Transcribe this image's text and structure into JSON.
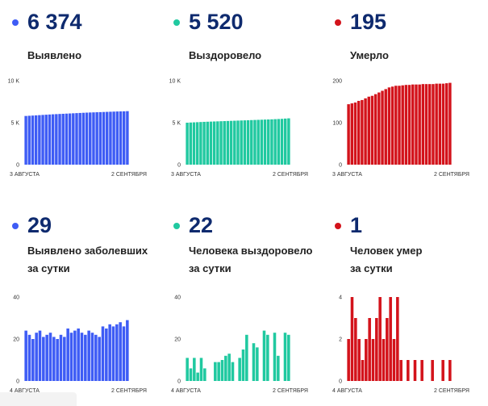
{
  "colors": {
    "blue": "#3e5cf5",
    "green": "#20c9a0",
    "red": "#d3131b"
  },
  "panels": [
    {
      "id": "p1",
      "color": "#3e5cf5",
      "big": "6 374",
      "label_lines": [
        "Выявлено"
      ]
    },
    {
      "id": "p2",
      "color": "#20c9a0",
      "big": "5 520",
      "label_lines": [
        "Выздоровело"
      ]
    },
    {
      "id": "p3",
      "color": "#d3131b",
      "big": "195",
      "label_lines": [
        "Умерло"
      ]
    },
    {
      "id": "p4",
      "color": "#3e5cf5",
      "big": "29",
      "label_lines": [
        "Выявлено заболевших",
        "за сутки"
      ]
    },
    {
      "id": "p5",
      "color": "#20c9a0",
      "big": "22",
      "label_lines": [
        "Человека выздоровело",
        "за сутки"
      ]
    },
    {
      "id": "p6",
      "color": "#d3131b",
      "big": "1",
      "label_lines": [
        "Человек умер",
        "за сутки"
      ]
    }
  ],
  "chart_data": [
    {
      "type": "bar",
      "color": "#3e5cf5",
      "ylim": [
        0,
        10000
      ],
      "yticks": [
        0,
        5000,
        10000
      ],
      "ytick_labels": [
        "0",
        "5 K",
        "10 K"
      ],
      "x_start_label": "3 АВГУСТА",
      "x_end_label": "2 СЕНТЯБРЯ",
      "values": [
        5800,
        5825,
        5850,
        5875,
        5900,
        5925,
        5950,
        5975,
        6000,
        6020,
        6040,
        6060,
        6080,
        6100,
        6120,
        6140,
        6160,
        6180,
        6200,
        6215,
        6230,
        6245,
        6260,
        6275,
        6290,
        6305,
        6320,
        6335,
        6345,
        6355,
        6374
      ]
    },
    {
      "type": "bar",
      "color": "#20c9a0",
      "ylim": [
        0,
        10000
      ],
      "yticks": [
        0,
        5000,
        10000
      ],
      "ytick_labels": [
        "0",
        "5 K",
        "10 K"
      ],
      "x_start_label": "3 АВГУСТА",
      "x_end_label": "2 СЕНТЯБРЯ",
      "values": [
        5000,
        5020,
        5040,
        5060,
        5080,
        5100,
        5115,
        5130,
        5145,
        5160,
        5175,
        5190,
        5205,
        5220,
        5235,
        5250,
        5265,
        5280,
        5295,
        5310,
        5325,
        5340,
        5355,
        5370,
        5385,
        5400,
        5420,
        5440,
        5460,
        5490,
        5520
      ]
    },
    {
      "type": "bar",
      "color": "#d3131b",
      "ylim": [
        0,
        200
      ],
      "yticks": [
        0,
        100,
        200
      ],
      "ytick_labels": [
        "0",
        "100",
        "200"
      ],
      "x_start_label": "3 АВГУСТА",
      "x_end_label": "2 СЕНТЯБРЯ",
      "values": [
        144,
        146,
        148,
        152,
        154,
        158,
        162,
        164,
        168,
        172,
        176,
        180,
        184,
        186,
        188,
        188,
        189,
        190,
        190,
        191,
        191,
        191,
        192,
        192,
        192,
        192,
        193,
        193,
        193,
        194,
        195
      ]
    },
    {
      "type": "bar",
      "color": "#3e5cf5",
      "ylim": [
        0,
        40
      ],
      "yticks": [
        0,
        20,
        40
      ],
      "ytick_labels": [
        "0",
        "20",
        "40"
      ],
      "x_start_label": "4 АВГУСТА",
      "x_end_label": "2 СЕНТЯБРЯ",
      "values": [
        24,
        22,
        20,
        23,
        24,
        21,
        22,
        23,
        21,
        20,
        22,
        21,
        25,
        23,
        24,
        25,
        23,
        22,
        24,
        23,
        22,
        21,
        26,
        25,
        27,
        26,
        27,
        28,
        26,
        29
      ]
    },
    {
      "type": "bar",
      "color": "#20c9a0",
      "ylim": [
        0,
        40
      ],
      "yticks": [
        0,
        20,
        40
      ],
      "ytick_labels": [
        "0",
        "20",
        "40"
      ],
      "x_start_label": "4 АВГУСТА",
      "x_end_label": "2 СЕНТЯБРЯ",
      "values": [
        11,
        6,
        11,
        4,
        11,
        6,
        0,
        0,
        9,
        9,
        10,
        12,
        13,
        9,
        0,
        11,
        15,
        22,
        0,
        18,
        16,
        0,
        24,
        22,
        0,
        23,
        12,
        0,
        23,
        22
      ]
    },
    {
      "type": "bar",
      "color": "#d3131b",
      "ylim": [
        0,
        4
      ],
      "yticks": [
        0,
        2,
        4
      ],
      "ytick_labels": [
        "0",
        "2",
        "4"
      ],
      "x_start_label": "4 АВГУСТА",
      "x_end_label": "2 СЕНТЯБРЯ",
      "values": [
        2,
        4,
        3,
        2,
        1,
        2,
        3,
        2,
        3,
        4,
        2,
        3,
        4,
        2,
        4,
        1,
        0,
        1,
        0,
        1,
        0,
        1,
        0,
        0,
        1,
        0,
        0,
        1,
        0,
        1
      ]
    }
  ]
}
